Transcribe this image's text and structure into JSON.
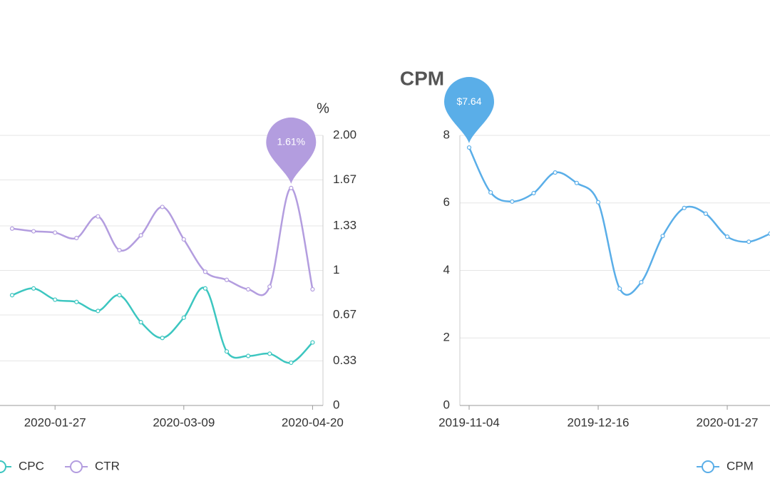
{
  "chart_data": [
    {
      "type": "line",
      "categories": [
        null,
        null,
        "2020-01-27",
        null,
        null,
        null,
        null,
        null,
        "2020-03-09",
        null,
        null,
        null,
        null,
        null,
        "2020-04-20"
      ],
      "series": [
        {
          "name": "CPC",
          "color": "#3cc6c0",
          "values": [
            0.49,
            0.52,
            0.47,
            0.46,
            0.42,
            0.49,
            0.37,
            0.3,
            0.39,
            0.52,
            0.24,
            0.22,
            0.23,
            0.19,
            0.28
          ]
        },
        {
          "name": "CTR",
          "color": "#b39ddf",
          "axis": "y2",
          "values": [
            1.31,
            1.29,
            1.28,
            1.24,
            1.4,
            1.15,
            1.26,
            1.47,
            1.23,
            0.99,
            0.93,
            0.86,
            0.88,
            1.61,
            0.86
          ],
          "value_labels": [
            null,
            null,
            null,
            null,
            null,
            null,
            null,
            null,
            null,
            null,
            null,
            null,
            null,
            "1.61%",
            null
          ]
        }
      ],
      "ylim": [
        0,
        1.2
      ],
      "y2lim": [
        0,
        2
      ],
      "y2ticks": [
        0,
        0.33,
        0.67,
        1,
        1.33,
        1.67,
        {
          "value": 2,
          "label": "2.00"
        }
      ],
      "y2_label": "%",
      "grid": true
    },
    {
      "type": "line",
      "title": "CPM",
      "categories": [
        "2019-11-04",
        null,
        null,
        null,
        null,
        null,
        "2019-12-16",
        null,
        null,
        null,
        null,
        null,
        "2020-01-27",
        null,
        null
      ],
      "series": [
        {
          "name": "CPM",
          "color": "#5aaee8",
          "values": [
            7.64,
            6.31,
            6.04,
            6.29,
            6.9,
            6.59,
            6.02,
            3.46,
            3.65,
            5.02,
            5.85,
            5.68,
            5.0,
            4.85,
            5.09
          ],
          "value_labels": [
            "$7.64",
            null,
            null,
            null,
            null,
            null,
            null,
            null,
            null,
            null,
            null,
            null,
            null,
            null,
            null
          ]
        }
      ],
      "ylim": [
        0,
        8
      ],
      "yticks": [
        0,
        2,
        4,
        6,
        8
      ],
      "grid": true
    }
  ]
}
